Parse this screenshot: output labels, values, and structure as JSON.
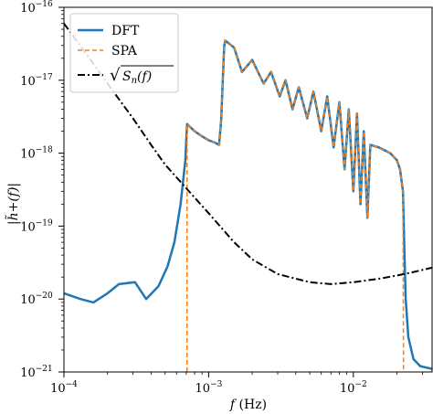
{
  "chart_data": {
    "type": "line",
    "title": "",
    "xlabel": "f (Hz)",
    "xlabel_parts": {
      "var": "f",
      "unit": " (Hz)"
    },
    "ylabel": "|h̃+(f)|",
    "xscale": "log",
    "yscale": "log",
    "xlim": [
      0.0001,
      0.035
    ],
    "ylim": [
      1e-21,
      1e-16
    ],
    "x_ticks": [
      {
        "value": 0.0001,
        "base": "10",
        "exp": "−4"
      },
      {
        "value": 0.001,
        "base": "10",
        "exp": "−3"
      },
      {
        "value": 0.01,
        "base": "10",
        "exp": "−2"
      }
    ],
    "y_ticks": [
      {
        "value": 1e-21,
        "base": "10",
        "exp": "−21"
      },
      {
        "value": 1e-20,
        "base": "10",
        "exp": "−20"
      },
      {
        "value": 1e-19,
        "base": "10",
        "exp": "−19"
      },
      {
        "value": 1e-18,
        "base": "10",
        "exp": "−18"
      },
      {
        "value": 1e-17,
        "base": "10",
        "exp": "−17"
      },
      {
        "value": 1e-16,
        "base": "10",
        "exp": "−16"
      }
    ],
    "grid": false,
    "legend_position": "top-left",
    "series": [
      {
        "name": "DFT",
        "color": "#1f77b4",
        "style": "solid",
        "points": [
          [
            0.0001,
            1.2e-20
          ],
          [
            0.00013,
            1e-20
          ],
          [
            0.00016,
            9e-21
          ],
          [
            0.0002,
            1.2e-20
          ],
          [
            0.00024,
            1.6e-20
          ],
          [
            0.00031,
            1.7e-20
          ],
          [
            0.00037,
            1e-20
          ],
          [
            0.00045,
            1.5e-20
          ],
          [
            0.00052,
            2.8e-20
          ],
          [
            0.00058,
            6e-20
          ],
          [
            0.00064,
            2e-19
          ],
          [
            0.00069,
            8e-19
          ],
          [
            0.00071,
            2.5e-18
          ],
          [
            0.0008,
            2e-18
          ],
          [
            0.0009,
            1.7e-18
          ],
          [
            0.001,
            1.5e-18
          ],
          [
            0.0011,
            1.4e-18
          ],
          [
            0.00118,
            1.3e-18
          ],
          [
            0.00122,
            2.8e-18
          ],
          [
            0.00128,
            2.9e-17
          ],
          [
            0.0013,
            3.5e-17
          ],
          [
            0.0015,
            2.8e-17
          ],
          [
            0.0017,
            1.3e-17
          ],
          [
            0.002,
            1.9e-17
          ],
          [
            0.0024,
            9e-18
          ],
          [
            0.0027,
            1.3e-17
          ],
          [
            0.0031,
            6e-18
          ],
          [
            0.0034,
            1e-17
          ],
          [
            0.0038,
            4e-18
          ],
          [
            0.0042,
            8e-18
          ],
          [
            0.0048,
            3e-18
          ],
          [
            0.0053,
            7e-18
          ],
          [
            0.006,
            2e-18
          ],
          [
            0.0066,
            6e-18
          ],
          [
            0.0073,
            1.2e-18
          ],
          [
            0.008,
            5e-18
          ],
          [
            0.0087,
            6e-19
          ],
          [
            0.0093,
            4e-18
          ],
          [
            0.01,
            3e-19
          ],
          [
            0.0106,
            3.5e-18
          ],
          [
            0.0112,
            2e-19
          ],
          [
            0.0118,
            2e-18
          ],
          [
            0.0125,
            1.3e-19
          ],
          [
            0.0131,
            1.3e-18
          ],
          [
            0.015,
            1.2e-18
          ],
          [
            0.018,
            1e-18
          ],
          [
            0.02,
            8e-19
          ],
          [
            0.021,
            6e-19
          ],
          [
            0.022,
            3e-19
          ],
          [
            0.0225,
            5e-20
          ],
          [
            0.023,
            1e-20
          ],
          [
            0.024,
            3e-21
          ],
          [
            0.026,
            1.5e-21
          ],
          [
            0.029,
            1.2e-21
          ],
          [
            0.035,
            1.1e-21
          ]
        ]
      },
      {
        "name": "SPA",
        "color": "#ff7f0e",
        "style": "dashed",
        "points": [
          [
            0.00071,
            1e-21
          ],
          [
            0.00071,
            2.5e-18
          ],
          [
            0.0008,
            2e-18
          ],
          [
            0.0009,
            1.7e-18
          ],
          [
            0.001,
            1.5e-18
          ],
          [
            0.0011,
            1.4e-18
          ],
          [
            0.00118,
            1.3e-18
          ],
          [
            0.00122,
            2.8e-18
          ],
          [
            0.00128,
            2.9e-17
          ],
          [
            0.0013,
            3.5e-17
          ],
          [
            0.0015,
            2.8e-17
          ],
          [
            0.0017,
            1.3e-17
          ],
          [
            0.002,
            1.9e-17
          ],
          [
            0.0024,
            9e-18
          ],
          [
            0.0027,
            1.3e-17
          ],
          [
            0.0031,
            6e-18
          ],
          [
            0.0034,
            1e-17
          ],
          [
            0.0038,
            4e-18
          ],
          [
            0.0042,
            8e-18
          ],
          [
            0.0048,
            3e-18
          ],
          [
            0.0053,
            7e-18
          ],
          [
            0.006,
            2e-18
          ],
          [
            0.0066,
            6e-18
          ],
          [
            0.0073,
            1.2e-18
          ],
          [
            0.008,
            5e-18
          ],
          [
            0.0087,
            6e-19
          ],
          [
            0.0093,
            4e-18
          ],
          [
            0.01,
            3e-19
          ],
          [
            0.0106,
            3.5e-18
          ],
          [
            0.0112,
            2e-19
          ],
          [
            0.0118,
            2e-18
          ],
          [
            0.0125,
            1.3e-19
          ],
          [
            0.0131,
            1.3e-18
          ],
          [
            0.015,
            1.2e-18
          ],
          [
            0.018,
            1e-18
          ],
          [
            0.02,
            8e-19
          ],
          [
            0.021,
            6e-19
          ],
          [
            0.022,
            3e-19
          ],
          [
            0.0222,
            1e-21
          ]
        ]
      },
      {
        "name": "√Sn(f)",
        "color": "#000000",
        "style": "dashdot",
        "points": [
          [
            0.0001,
            6e-17
          ],
          [
            0.00015,
            2e-17
          ],
          [
            0.0002,
            9e-18
          ],
          [
            0.0003,
            3e-18
          ],
          [
            0.0004,
            1.3e-18
          ],
          [
            0.0005,
            7e-19
          ],
          [
            0.0007,
            3.3e-19
          ],
          [
            0.001,
            1.5e-19
          ],
          [
            0.0015,
            6e-20
          ],
          [
            0.002,
            3.5e-20
          ],
          [
            0.003,
            2.2e-20
          ],
          [
            0.005,
            1.7e-20
          ],
          [
            0.007,
            1.6e-20
          ],
          [
            0.01,
            1.7e-20
          ],
          [
            0.015,
            1.9e-20
          ],
          [
            0.02,
            2.1e-20
          ],
          [
            0.025,
            2.3e-20
          ],
          [
            0.03,
            2.5e-20
          ],
          [
            0.035,
            2.7e-20
          ]
        ]
      }
    ],
    "legend": [
      {
        "label": "DFT"
      },
      {
        "label": "SPA"
      },
      {
        "label": "Sn(f)",
        "prefix": "√",
        "parts": {
          "var": "S",
          "sub": "n",
          "arg": "(f)"
        }
      }
    ]
  }
}
